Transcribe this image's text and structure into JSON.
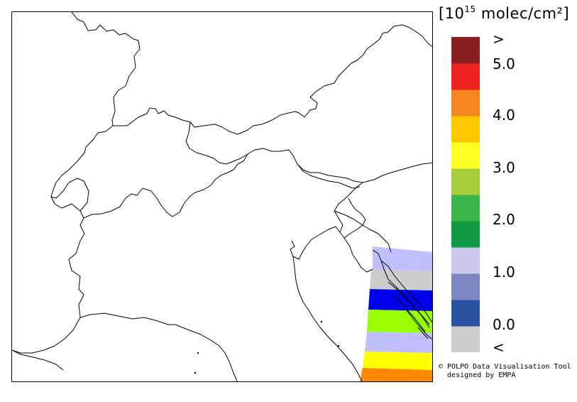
{
  "legend": {
    "unit_prefix": "[10",
    "unit_exponent": "15",
    "unit_suffix": " molec/cm²]",
    "colors": [
      "#cccccc",
      "#2b52a0",
      "#7d86c0",
      "#c8c8ea",
      "#119944",
      "#3cb54a",
      "#a6cc3a",
      "#ffff22",
      "#ffc800",
      "#f68420",
      "#ee2222",
      "#8a1f1f"
    ],
    "tick_labels": [
      ">",
      "5.0",
      "4.0",
      "3.0",
      "2.0",
      "1.0",
      "0.0",
      "<"
    ]
  },
  "swath": {
    "colors": [
      "#c0c0ff",
      "#cccccc",
      "#0000ee",
      "#99ff00",
      "#c0c0ff",
      "#ffff00",
      "#ff8800"
    ]
  },
  "credit": {
    "line1": "© POLPO Data Visualisation Tool",
    "line2": "  designed by EMPA"
  }
}
